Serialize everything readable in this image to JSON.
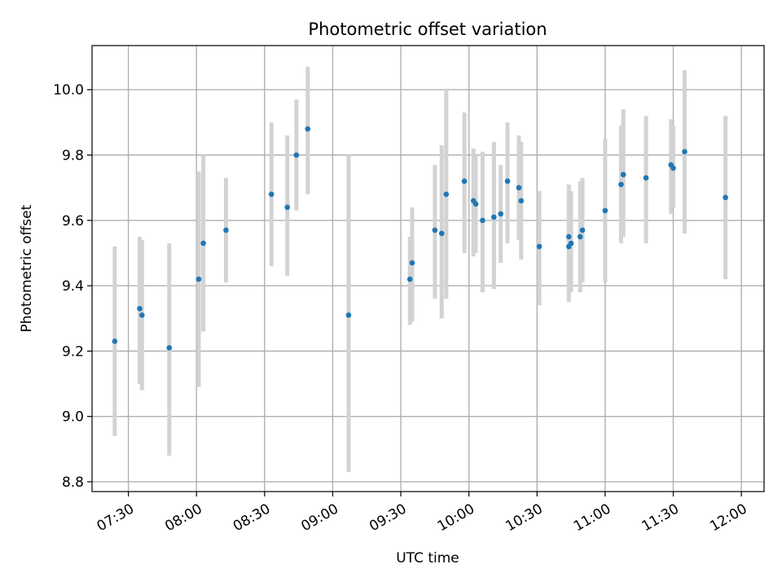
{
  "chart_data": {
    "type": "scatter",
    "title": "Photometric offset variation",
    "xlabel": "UTC time",
    "ylabel": "Photometric offset",
    "x_tick_labels": [
      "07:30",
      "08:00",
      "08:30",
      "09:00",
      "09:30",
      "10:00",
      "10:30",
      "11:00",
      "11:30",
      "12:00"
    ],
    "y_tick_labels": [
      "8.8",
      "9.0",
      "9.2",
      "9.4",
      "9.6",
      "9.8",
      "10.0"
    ],
    "xlim": [
      "07:14",
      "12:10"
    ],
    "ylim": [
      8.77,
      10.135
    ],
    "grid": true,
    "colors": {
      "point": "#1f77b4",
      "error_bar": "#d3d3d3",
      "grid": "#b0b0b0"
    },
    "points": [
      {
        "time": "07:24",
        "value": 9.23,
        "low": 8.94,
        "high": 9.52
      },
      {
        "time": "07:35",
        "value": 9.33,
        "low": 9.1,
        "high": 9.55
      },
      {
        "time": "07:36",
        "value": 9.31,
        "low": 9.08,
        "high": 9.54
      },
      {
        "time": "07:48",
        "value": 9.21,
        "low": 8.88,
        "high": 9.53
      },
      {
        "time": "08:01",
        "value": 9.42,
        "low": 9.09,
        "high": 9.75
      },
      {
        "time": "08:03",
        "value": 9.53,
        "low": 9.26,
        "high": 9.8
      },
      {
        "time": "08:13",
        "value": 9.57,
        "low": 9.41,
        "high": 9.73
      },
      {
        "time": "08:33",
        "value": 9.68,
        "low": 9.46,
        "high": 9.9
      },
      {
        "time": "08:40",
        "value": 9.64,
        "low": 9.43,
        "high": 9.86
      },
      {
        "time": "08:44",
        "value": 9.8,
        "low": 9.63,
        "high": 9.97
      },
      {
        "time": "08:49",
        "value": 9.88,
        "low": 9.68,
        "high": 10.07
      },
      {
        "time": "09:07",
        "value": 9.31,
        "low": 8.83,
        "high": 9.8
      },
      {
        "time": "09:34",
        "value": 9.42,
        "low": 9.28,
        "high": 9.55
      },
      {
        "time": "09:35",
        "value": 9.47,
        "low": 9.29,
        "high": 9.64
      },
      {
        "time": "09:45",
        "value": 9.57,
        "low": 9.36,
        "high": 9.77
      },
      {
        "time": "09:48",
        "value": 9.56,
        "low": 9.3,
        "high": 9.83
      },
      {
        "time": "09:50",
        "value": 9.68,
        "low": 9.36,
        "high": 10.0
      },
      {
        "time": "09:58",
        "value": 9.72,
        "low": 9.5,
        "high": 9.93
      },
      {
        "time": "10:02",
        "value": 9.66,
        "low": 9.49,
        "high": 9.82
      },
      {
        "time": "10:03",
        "value": 9.65,
        "low": 9.5,
        "high": 9.8
      },
      {
        "time": "10:06",
        "value": 9.6,
        "low": 9.38,
        "high": 9.81
      },
      {
        "time": "10:11",
        "value": 9.61,
        "low": 9.39,
        "high": 9.84
      },
      {
        "time": "10:14",
        "value": 9.62,
        "low": 9.47,
        "high": 9.77
      },
      {
        "time": "10:17",
        "value": 9.72,
        "low": 9.53,
        "high": 9.9
      },
      {
        "time": "10:22",
        "value": 9.7,
        "low": 9.54,
        "high": 9.86
      },
      {
        "time": "10:23",
        "value": 9.66,
        "low": 9.48,
        "high": 9.84
      },
      {
        "time": "10:31",
        "value": 9.52,
        "low": 9.34,
        "high": 9.69
      },
      {
        "time": "10:44",
        "value": 9.55,
        "low": 9.35,
        "high": 9.71
      },
      {
        "time": "10:44",
        "value": 9.52,
        "low": 9.38,
        "high": 9.67
      },
      {
        "time": "10:45",
        "value": 9.53,
        "low": 9.38,
        "high": 9.69
      },
      {
        "time": "10:49",
        "value": 9.55,
        "low": 9.38,
        "high": 9.72
      },
      {
        "time": "10:50",
        "value": 9.57,
        "low": 9.41,
        "high": 9.73
      },
      {
        "time": "11:00",
        "value": 9.63,
        "low": 9.41,
        "high": 9.85
      },
      {
        "time": "11:07",
        "value": 9.71,
        "low": 9.53,
        "high": 9.89
      },
      {
        "time": "11:08",
        "value": 9.74,
        "low": 9.55,
        "high": 9.94
      },
      {
        "time": "11:18",
        "value": 9.73,
        "low": 9.53,
        "high": 9.92
      },
      {
        "time": "11:29",
        "value": 9.77,
        "low": 9.62,
        "high": 9.91
      },
      {
        "time": "11:30",
        "value": 9.76,
        "low": 9.64,
        "high": 9.89
      },
      {
        "time": "11:35",
        "value": 9.81,
        "low": 9.56,
        "high": 10.06
      },
      {
        "time": "11:53",
        "value": 9.67,
        "low": 9.42,
        "high": 9.92
      }
    ]
  }
}
